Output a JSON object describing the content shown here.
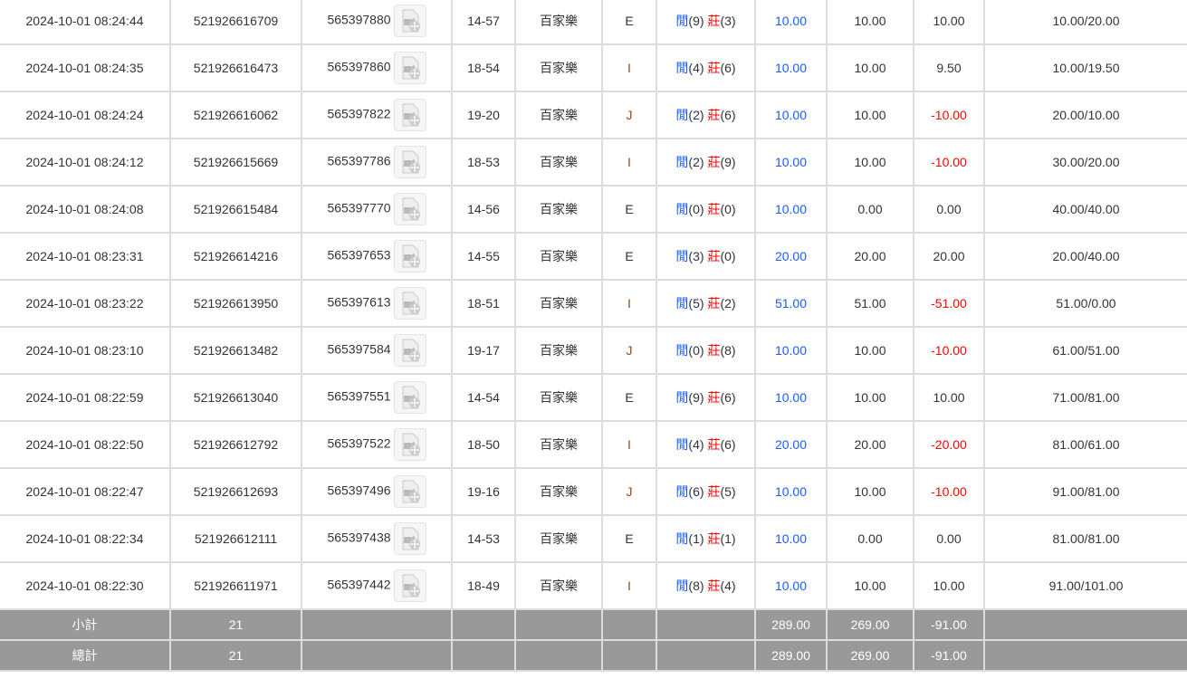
{
  "colors": {
    "player": "#1a5cff",
    "banker": "#ff0000",
    "negative": "#ff0000",
    "bet": "#1a5cff",
    "footer_bg": "#999999"
  },
  "player_label": "閒",
  "banker_label": "莊",
  "rows": [
    {
      "time": "2024-10-01 08:24:44",
      "id": "521926616709",
      "round": "565397880",
      "table": "14-57",
      "game": "百家樂",
      "room": "E",
      "player": "(9)",
      "banker": "(3)",
      "bet": "10.00",
      "valid": "10.00",
      "win": "10.00",
      "balance": "10.00/20.00"
    },
    {
      "time": "2024-10-01 08:24:35",
      "id": "521926616473",
      "round": "565397860",
      "table": "18-54",
      "game": "百家樂",
      "room": "I",
      "player": "(4)",
      "banker": "(6)",
      "bet": "10.00",
      "valid": "10.00",
      "win": "9.50",
      "balance": "10.00/19.50"
    },
    {
      "time": "2024-10-01 08:24:24",
      "id": "521926616062",
      "round": "565397822",
      "table": "19-20",
      "game": "百家樂",
      "room": "J",
      "player": "(2)",
      "banker": "(6)",
      "bet": "10.00",
      "valid": "10.00",
      "win": "-10.00",
      "balance": "20.00/10.00"
    },
    {
      "time": "2024-10-01 08:24:12",
      "id": "521926615669",
      "round": "565397786",
      "table": "18-53",
      "game": "百家樂",
      "room": "I",
      "player": "(2)",
      "banker": "(9)",
      "bet": "10.00",
      "valid": "10.00",
      "win": "-10.00",
      "balance": "30.00/20.00"
    },
    {
      "time": "2024-10-01 08:24:08",
      "id": "521926615484",
      "round": "565397770",
      "table": "14-56",
      "game": "百家樂",
      "room": "E",
      "player": "(0)",
      "banker": "(0)",
      "bet": "10.00",
      "valid": "0.00",
      "win": "0.00",
      "balance": "40.00/40.00"
    },
    {
      "time": "2024-10-01 08:23:31",
      "id": "521926614216",
      "round": "565397653",
      "table": "14-55",
      "game": "百家樂",
      "room": "E",
      "player": "(3)",
      "banker": "(0)",
      "bet": "20.00",
      "valid": "20.00",
      "win": "20.00",
      "balance": "20.00/40.00"
    },
    {
      "time": "2024-10-01 08:23:22",
      "id": "521926613950",
      "round": "565397613",
      "table": "18-51",
      "game": "百家樂",
      "room": "I",
      "player": "(5)",
      "banker": "(2)",
      "bet": "51.00",
      "valid": "51.00",
      "win": "-51.00",
      "balance": "51.00/0.00"
    },
    {
      "time": "2024-10-01 08:23:10",
      "id": "521926613482",
      "round": "565397584",
      "table": "19-17",
      "game": "百家樂",
      "room": "J",
      "player": "(0)",
      "banker": "(8)",
      "bet": "10.00",
      "valid": "10.00",
      "win": "-10.00",
      "balance": "61.00/51.00"
    },
    {
      "time": "2024-10-01 08:22:59",
      "id": "521926613040",
      "round": "565397551",
      "table": "14-54",
      "game": "百家樂",
      "room": "E",
      "player": "(9)",
      "banker": "(6)",
      "bet": "10.00",
      "valid": "10.00",
      "win": "10.00",
      "balance": "71.00/81.00"
    },
    {
      "time": "2024-10-01 08:22:50",
      "id": "521926612792",
      "round": "565397522",
      "table": "18-50",
      "game": "百家樂",
      "room": "I",
      "player": "(4)",
      "banker": "(6)",
      "bet": "20.00",
      "valid": "20.00",
      "win": "-20.00",
      "balance": "81.00/61.00"
    },
    {
      "time": "2024-10-01 08:22:47",
      "id": "521926612693",
      "round": "565397496",
      "table": "19-16",
      "game": "百家樂",
      "room": "J",
      "player": "(6)",
      "banker": "(5)",
      "bet": "10.00",
      "valid": "10.00",
      "win": "-10.00",
      "balance": "91.00/81.00"
    },
    {
      "time": "2024-10-01 08:22:34",
      "id": "521926612111",
      "round": "565397438",
      "table": "14-53",
      "game": "百家樂",
      "room": "E",
      "player": "(1)",
      "banker": "(1)",
      "bet": "10.00",
      "valid": "0.00",
      "win": "0.00",
      "balance": "81.00/81.00"
    },
    {
      "time": "2024-10-01 08:22:30",
      "id": "521926611971",
      "round": "565397442",
      "table": "18-49",
      "game": "百家樂",
      "room": "I",
      "player": "(8)",
      "banker": "(4)",
      "bet": "10.00",
      "valid": "10.00",
      "win": "10.00",
      "balance": "91.00/101.00"
    }
  ],
  "subtotal": {
    "label": "小計",
    "count": "21",
    "bet": "289.00",
    "valid": "269.00",
    "win": "-91.00"
  },
  "total": {
    "label": "總計",
    "count": "21",
    "bet": "289.00",
    "valid": "269.00",
    "win": "-91.00"
  }
}
